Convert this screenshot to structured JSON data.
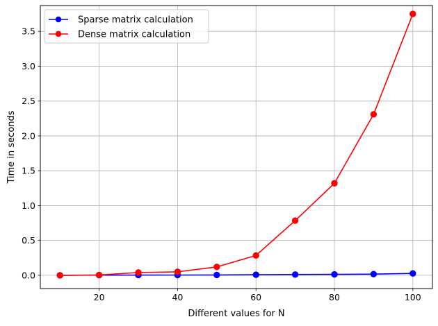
{
  "chart_data": {
    "type": "line",
    "title": "",
    "xlabel": "Different values for N",
    "ylabel": "Time in seconds",
    "x": [
      10,
      20,
      30,
      40,
      50,
      60,
      70,
      80,
      90,
      100
    ],
    "xlim": [
      5,
      105
    ],
    "ylim": [
      -0.19,
      3.87
    ],
    "xticks": [
      20,
      40,
      60,
      80,
      100
    ],
    "yticks": [
      0.0,
      0.5,
      1.0,
      1.5,
      2.0,
      2.5,
      3.0,
      3.5
    ],
    "xtick_labels": [
      "20",
      "40",
      "60",
      "80",
      "100"
    ],
    "ytick_labels": [
      "0.0",
      "0.5",
      "1.0",
      "1.5",
      "2.0",
      "2.5",
      "3.0",
      "3.5"
    ],
    "grid": true,
    "legend_position": "upper-left",
    "series": [
      {
        "name": "Sparse matrix calculation",
        "color": "#0000ff",
        "marker": "circle",
        "values": [
          0.0,
          0.002,
          0.003,
          0.004,
          0.005,
          0.008,
          0.011,
          0.013,
          0.017,
          0.027
        ]
      },
      {
        "name": "Dense matrix calculation",
        "color": "#ff0000",
        "marker": "circle",
        "values": [
          0.0,
          0.005,
          0.04,
          0.05,
          0.12,
          0.285,
          0.785,
          1.32,
          2.31,
          3.75
        ]
      }
    ]
  }
}
